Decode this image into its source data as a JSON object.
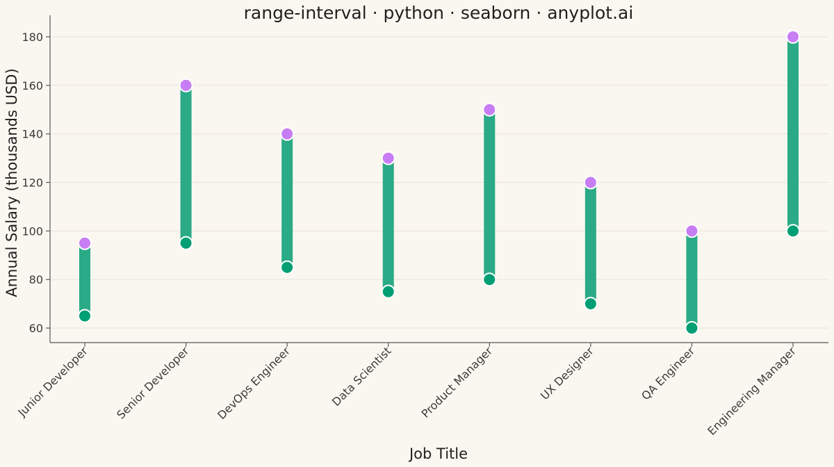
{
  "chart_data": {
    "type": "range-interval",
    "title": "range-interval · python · seaborn · anyplot.ai",
    "xlabel": "Job Title",
    "ylabel": "Annual Salary (thousands USD)",
    "categories": [
      "Junior Developer",
      "Senior Developer",
      "DevOps Engineer",
      "Data Scientist",
      "Product Manager",
      "UX Designer",
      "QA Engineer",
      "Engineering Manager"
    ],
    "min": [
      65,
      95,
      85,
      75,
      80,
      70,
      60,
      100
    ],
    "max": [
      95,
      160,
      140,
      130,
      150,
      120,
      100,
      180
    ],
    "ylim": [
      54,
      186
    ],
    "yticks": [
      60,
      80,
      100,
      120,
      140,
      160,
      180
    ],
    "grid": "horizontal",
    "colors": {
      "range_bar": "#2AAA86",
      "min_marker": "#009E73",
      "max_marker": "#C77DF3",
      "background": "#FAF7F0",
      "grid": "#E7E3DA"
    }
  }
}
